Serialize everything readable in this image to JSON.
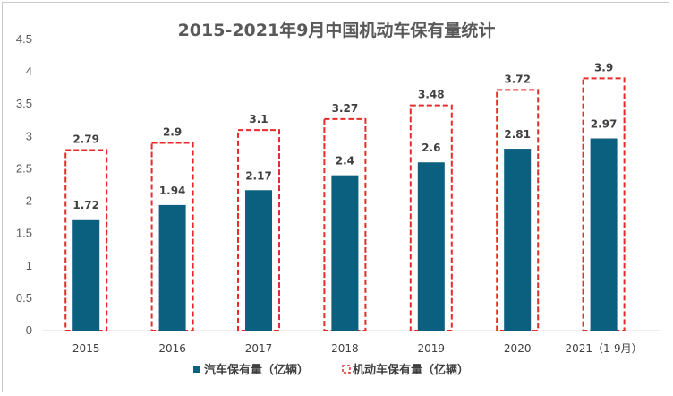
{
  "chart_data": {
    "type": "bar",
    "title": "2015-2021年9月中国机动车保有量统计",
    "categories": [
      "2015",
      "2016",
      "2017",
      "2018",
      "2019",
      "2020",
      "2021（1-9月）"
    ],
    "series": [
      {
        "name": "汽车保有量（亿辆）",
        "values": [
          1.72,
          1.94,
          2.17,
          2.4,
          2.6,
          2.81,
          2.97
        ],
        "color": "#0b5f7f"
      },
      {
        "name": "机动车保有量（亿辆）",
        "values": [
          2.79,
          2.9,
          3.1,
          3.27,
          3.48,
          3.72,
          3.9
        ],
        "color": "#e52b2b"
      }
    ],
    "ylim": [
      0,
      4.5
    ],
    "yticks": [
      "0",
      "0.5",
      "1",
      "1.5",
      "2",
      "2.5",
      "3",
      "3.5",
      "4",
      "4.5"
    ],
    "grid": false,
    "legend": "bottom"
  }
}
